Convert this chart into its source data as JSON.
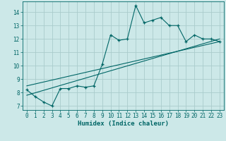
{
  "xlabel": "Humidex (Indice chaleur)",
  "ylabel": "",
  "background_color": "#cce8e8",
  "grid_color": "#aacccc",
  "line_color": "#006666",
  "xlim": [
    -0.5,
    23.5
  ],
  "ylim": [
    6.7,
    14.8
  ],
  "yticks": [
    7,
    8,
    9,
    10,
    11,
    12,
    13,
    14
  ],
  "xticks": [
    0,
    1,
    2,
    3,
    4,
    5,
    6,
    7,
    8,
    9,
    10,
    11,
    12,
    13,
    14,
    15,
    16,
    17,
    18,
    19,
    20,
    21,
    22,
    23
  ],
  "scatter_x": [
    0,
    1,
    2,
    3,
    4,
    5,
    6,
    7,
    8,
    9,
    10,
    11,
    12,
    13,
    14,
    15,
    16,
    17,
    18,
    19,
    20,
    21,
    22,
    23
  ],
  "scatter_y": [
    8.2,
    7.7,
    7.3,
    7.0,
    8.3,
    8.3,
    8.5,
    8.4,
    8.5,
    10.1,
    12.3,
    11.9,
    12.0,
    14.5,
    13.2,
    13.4,
    13.6,
    13.0,
    13.0,
    11.8,
    12.3,
    12.0,
    12.0,
    11.8
  ],
  "line1_x": [
    0,
    23
  ],
  "line1_y": [
    7.8,
    12.0
  ],
  "line2_x": [
    0,
    23
  ],
  "line2_y": [
    8.5,
    11.8
  ],
  "tick_font_size": 5.5,
  "label_font_size": 6.5
}
